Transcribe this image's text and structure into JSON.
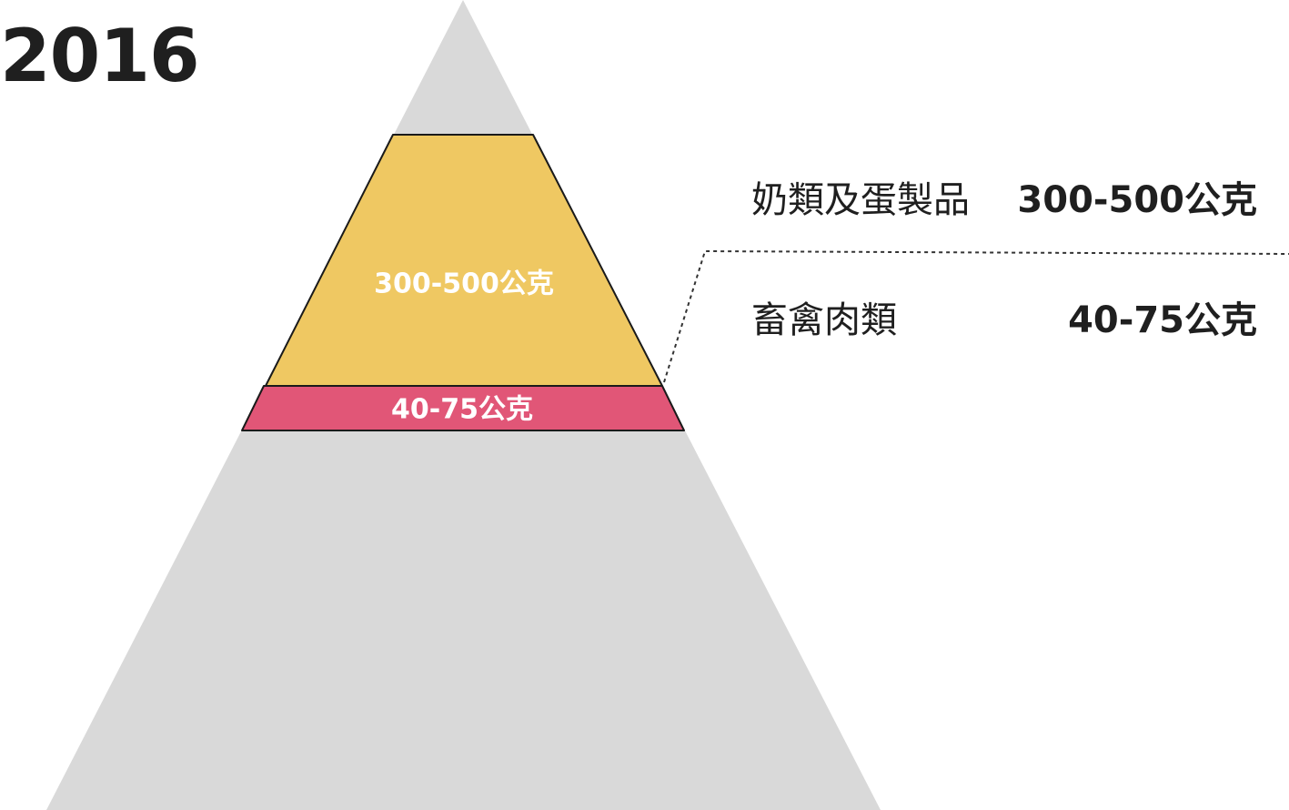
{
  "title": "2016",
  "colors": {
    "background_triangle": "#d9d9d9",
    "dairy": "#efc862",
    "meat": "#e15677",
    "text_dark": "#1f1f1f",
    "text_on_band": "#ffffff",
    "outline": "#1a1a1a"
  },
  "bands": [
    {
      "name": "奶類及蛋製品",
      "label": "300-500公克",
      "color": "#efc862"
    },
    {
      "name": "畜禽肉類",
      "label": "40-75公克",
      "color": "#e15677"
    }
  ],
  "legend": [
    {
      "name": "奶類及蛋製品",
      "value": "300-500公克"
    },
    {
      "name": "畜禽肉類",
      "value": "40-75公克"
    }
  ]
}
